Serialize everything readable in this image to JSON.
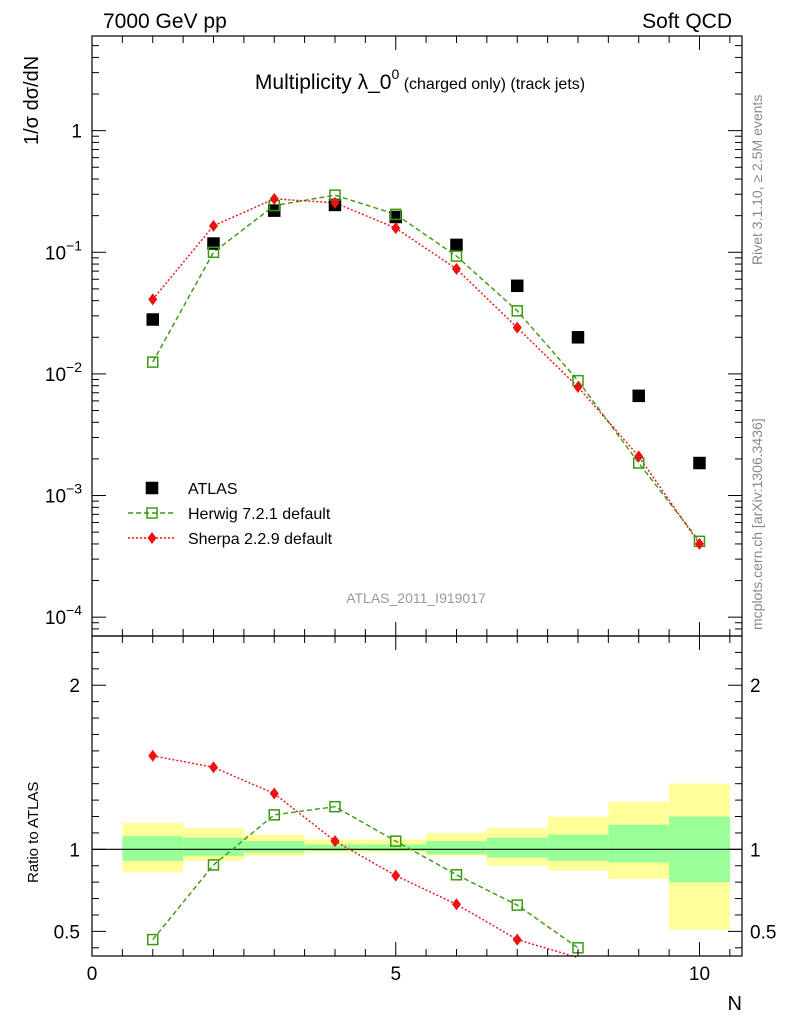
{
  "header": {
    "left": "7000 GeV pp",
    "right": "Soft QCD"
  },
  "title": {
    "main": "Multiplicity λ_0",
    "superscript": "0",
    "suffix": " (charged only) (track jets)"
  },
  "side_text": {
    "rivet": "Rivet 3.1.10, ≥ 2.5M events",
    "mcplots": "mcplots.cern.ch [arXiv:1306.3436]"
  },
  "analysis_id": "ATLAS_2011_I919017",
  "legend": [
    {
      "label": "ATLAS",
      "color": "#000000",
      "marker": "square-filled"
    },
    {
      "label": "Herwig 7.2.1 default",
      "color": "#3a9a0e",
      "marker": "square-open",
      "line": "dashed"
    },
    {
      "label": "Sherpa 2.2.9 default",
      "color": "#ee1111",
      "marker": "diamond-filled",
      "line": "dotted"
    }
  ],
  "chart_data": [
    {
      "type": "scatter",
      "panel": "main",
      "ylabel": "1/σ dσ/dN",
      "yscale": "log",
      "xlim": [
        0,
        10.7
      ],
      "ylim": [
        7e-05,
        6
      ],
      "y_tick_labels": [
        {
          "value": 0.0001,
          "base": "10",
          "exp": "−4"
        },
        {
          "value": 0.001,
          "base": "10",
          "exp": "−3"
        },
        {
          "value": 0.01,
          "base": "10",
          "exp": "−2"
        },
        {
          "value": 0.1,
          "base": "10",
          "exp": "−1"
        },
        {
          "value": 1,
          "base": "1",
          "exp": ""
        }
      ],
      "series": [
        {
          "name": "ATLAS",
          "x": [
            1,
            2,
            3,
            4,
            5,
            6,
            7,
            8,
            9,
            10
          ],
          "y": [
            0.028,
            0.118,
            0.22,
            0.245,
            0.195,
            0.115,
            0.053,
            0.02,
            0.0066,
            0.00185
          ],
          "band_lo": [
            0.86,
            0.93,
            0.96,
            0.98,
            0.98,
            0.96,
            0.9,
            0.87,
            0.82,
            0.51
          ],
          "band_hi": [
            1.16,
            1.13,
            1.09,
            1.06,
            1.06,
            1.1,
            1.13,
            1.2,
            1.29,
            1.4
          ],
          "stat_lo": [
            0.93,
            0.96,
            0.98,
            0.99,
            0.99,
            0.97,
            0.95,
            0.93,
            0.92,
            0.8
          ],
          "stat_hi": [
            1.08,
            1.07,
            1.05,
            1.03,
            1.03,
            1.05,
            1.07,
            1.09,
            1.15,
            1.2
          ]
        },
        {
          "name": "Herwig 7.2.1 default",
          "x": [
            1,
            2,
            3,
            4,
            5,
            6,
            7,
            8,
            9,
            10
          ],
          "y": [
            0.0125,
            0.1,
            0.242,
            0.295,
            0.205,
            0.093,
            0.033,
            0.0088,
            0.00185,
            0.00042
          ]
        },
        {
          "name": "Sherpa 2.2.9 default",
          "x": [
            1,
            2,
            3,
            4,
            5,
            6,
            7,
            8,
            9,
            10
          ],
          "y": [
            0.041,
            0.165,
            0.275,
            0.255,
            0.158,
            0.073,
            0.024,
            0.0078,
            0.0021,
            0.0004
          ]
        }
      ]
    },
    {
      "type": "scatter",
      "panel": "ratio",
      "xlabel": "N",
      "ylabel": "Ratio to ATLAS",
      "xlim": [
        0,
        10.7
      ],
      "ylim": [
        0.35,
        2.3
      ],
      "x_ticks": [
        0,
        5,
        10
      ],
      "x_tick_labels": [
        "0",
        "5",
        "10"
      ],
      "y_ticks": [
        0.5,
        1,
        2
      ],
      "y_tick_labels": [
        "0.5",
        "1",
        "2"
      ],
      "series": [
        {
          "name": "Herwig 7.2.1 default",
          "x": [
            1,
            2,
            3,
            4,
            5,
            6,
            7,
            8
          ],
          "y": [
            0.45,
            0.905,
            1.21,
            1.26,
            1.05,
            0.845,
            0.66,
            0.4
          ]
        },
        {
          "name": "Sherpa 2.2.9 default",
          "x": [
            1,
            2,
            3,
            4,
            5,
            6,
            7,
            8
          ],
          "y": [
            1.57,
            1.5,
            1.34,
            1.05,
            0.84,
            0.665,
            0.45,
            0.34
          ]
        }
      ]
    }
  ]
}
